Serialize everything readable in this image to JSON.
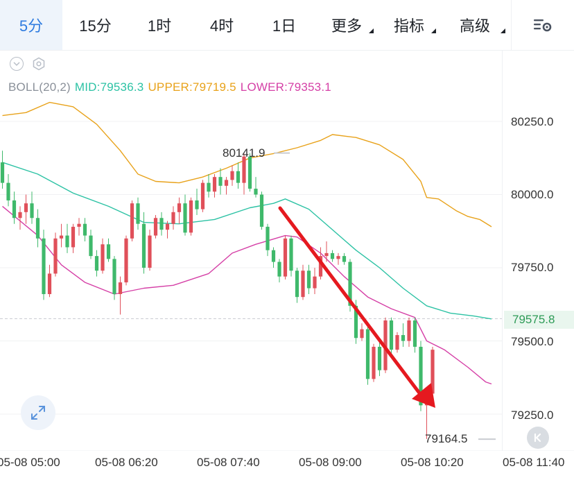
{
  "toolbar": {
    "tabs": [
      {
        "label": "5分",
        "active": true
      },
      {
        "label": "15分",
        "active": false
      },
      {
        "label": "1时",
        "active": false
      },
      {
        "label": "4时",
        "active": false
      },
      {
        "label": "1日",
        "active": false
      },
      {
        "label": "更多",
        "active": false,
        "dropdown": true
      },
      {
        "label": "指标",
        "active": false,
        "dropdown": true
      },
      {
        "label": "高级",
        "active": false,
        "dropdown": true
      }
    ],
    "settings_icon": "chart-settings-icon"
  },
  "indicator": {
    "name": "BOLL(20,2)",
    "mid": "MID:79536.3",
    "upper": "UPPER:79719.5",
    "lower": "LOWER:79353.1",
    "colors": {
      "name": "#8a9099",
      "mid": "#2cc2a4",
      "upper": "#e8a21a",
      "lower": "#d53fa6"
    }
  },
  "price_axis": {
    "labels": [
      "80250.0",
      "80000.0",
      "79750.0",
      "79500.0",
      "79250.0"
    ],
    "current_price": "79575.8"
  },
  "time_axis": {
    "labels": [
      "05-08 05:00",
      "05-08 06:20",
      "05-08 07:40",
      "05-08 09:00",
      "05-08 10:20",
      "05-08 11:40"
    ]
  },
  "annotations": {
    "high": "80141.9",
    "low": "79164.5"
  },
  "colors": {
    "up": "#e0505a",
    "down": "#3fb96b",
    "arrow": "#e5191f",
    "accent": "#2f7ce0"
  },
  "chart_data": {
    "type": "candlestick",
    "ylim": [
      79130,
      80320
    ],
    "x": [
      "05-08 05:00",
      "05-08 06:20",
      "05-08 07:40",
      "05-08 09:00",
      "05-08 10:20",
      "05-08 11:40"
    ],
    "candles": [
      [
        80110,
        80150,
        80020,
        80040
      ],
      [
        80040,
        80070,
        79960,
        79980
      ],
      [
        79980,
        80010,
        79900,
        79920
      ],
      [
        79920,
        79960,
        79880,
        79940
      ],
      [
        79940,
        80000,
        79900,
        79970
      ],
      [
        79970,
        80010,
        79900,
        79920
      ],
      [
        79920,
        79950,
        79820,
        79850
      ],
      [
        79850,
        79880,
        79640,
        79660
      ],
      [
        79660,
        79760,
        79650,
        79730
      ],
      [
        79730,
        79870,
        79720,
        79850
      ],
      [
        79850,
        79900,
        79820,
        79860
      ],
      [
        79860,
        79900,
        79800,
        79820
      ],
      [
        79820,
        79900,
        79800,
        79890
      ],
      [
        79890,
        79920,
        79860,
        79900
      ],
      [
        79900,
        79920,
        79840,
        79860
      ],
      [
        79860,
        79880,
        79780,
        79790
      ],
      [
        79790,
        79810,
        79720,
        79740
      ],
      [
        79740,
        79850,
        79730,
        79830
      ],
      [
        79830,
        79850,
        79770,
        79780
      ],
      [
        79780,
        79790,
        79640,
        79660
      ],
      [
        79660,
        79720,
        79590,
        79700
      ],
      [
        79700,
        79860,
        79690,
        79850
      ],
      [
        79850,
        79980,
        79840,
        79970
      ],
      [
        79970,
        79990,
        79880,
        79900
      ],
      [
        79900,
        79940,
        79730,
        79750
      ],
      [
        79750,
        79880,
        79740,
        79860
      ],
      [
        79860,
        79930,
        79850,
        79920
      ],
      [
        79920,
        79940,
        79860,
        79880
      ],
      [
        79880,
        79910,
        79850,
        79900
      ],
      [
        79900,
        79960,
        79880,
        79940
      ],
      [
        79940,
        79990,
        79900,
        79970
      ],
      [
        79970,
        80000,
        79860,
        79870
      ],
      [
        79870,
        79990,
        79860,
        79980
      ],
      [
        79980,
        80020,
        79930,
        79950
      ],
      [
        79950,
        80050,
        79940,
        80040
      ],
      [
        80040,
        80070,
        79990,
        80010
      ],
      [
        80010,
        80070,
        79990,
        80060
      ],
      [
        80060,
        80090,
        80000,
        80030
      ],
      [
        80030,
        80060,
        80000,
        80050
      ],
      [
        80050,
        80100,
        80030,
        80080
      ],
      [
        80080,
        80110,
        80020,
        80040
      ],
      [
        80040,
        80140,
        80000,
        80130
      ],
      [
        80130,
        80142,
        80010,
        80020
      ],
      [
        80020,
        80060,
        79990,
        80000
      ],
      [
        80000,
        80010,
        79880,
        79890
      ],
      [
        79890,
        79900,
        79790,
        79810
      ],
      [
        79810,
        79820,
        79750,
        79770
      ],
      [
        79770,
        79780,
        79700,
        79720
      ],
      [
        79720,
        79860,
        79710,
        79850
      ],
      [
        79850,
        79860,
        79720,
        79740
      ],
      [
        79740,
        79750,
        79630,
        79650
      ],
      [
        79650,
        79760,
        79640,
        79740
      ],
      [
        79740,
        79760,
        79660,
        79680
      ],
      [
        79680,
        79750,
        79660,
        79720
      ],
      [
        79720,
        79820,
        79710,
        79790
      ],
      [
        79790,
        79840,
        79770,
        79800
      ],
      [
        79800,
        79810,
        79770,
        79780
      ],
      [
        79780,
        79800,
        79760,
        79790
      ],
      [
        79790,
        79800,
        79760,
        79770
      ],
      [
        79770,
        79780,
        79600,
        79620
      ],
      [
        79620,
        79640,
        79490,
        79510
      ],
      [
        79510,
        79560,
        79500,
        79540
      ],
      [
        79540,
        79560,
        79350,
        79370
      ],
      [
        79370,
        79490,
        79360,
        79480
      ],
      [
        79480,
        79500,
        79380,
        79400
      ],
      [
        79400,
        79580,
        79390,
        79570
      ],
      [
        79570,
        79580,
        79450,
        79470
      ],
      [
        79470,
        79530,
        79460,
        79520
      ],
      [
        79520,
        79560,
        79480,
        79500
      ],
      [
        79500,
        79580,
        79480,
        79570
      ],
      [
        79570,
        79580,
        79460,
        79480
      ],
      [
        79480,
        79500,
        79260,
        79280
      ],
      [
        79280,
        79330,
        79165,
        79320
      ],
      [
        79320,
        79480,
        79300,
        79470
      ]
    ],
    "boll_upper": [
      [
        0,
        80270
      ],
      [
        4,
        80280
      ],
      [
        8,
        80315
      ],
      [
        12,
        80300
      ],
      [
        16,
        80240
      ],
      [
        20,
        80150
      ],
      [
        23,
        80070
      ],
      [
        26,
        80045
      ],
      [
        30,
        80040
      ],
      [
        34,
        80060
      ],
      [
        38,
        80090
      ],
      [
        42,
        80125
      ],
      [
        46,
        80140
      ],
      [
        50,
        80160
      ],
      [
        54,
        80185
      ],
      [
        56,
        80205
      ],
      [
        60,
        80195
      ],
      [
        64,
        80170
      ],
      [
        68,
        80120
      ],
      [
        71,
        80045
      ],
      [
        72,
        79990
      ],
      [
        74,
        79985
      ],
      [
        77,
        79945
      ],
      [
        79,
        79925
      ],
      [
        81,
        79915
      ],
      [
        83,
        79890
      ]
    ],
    "boll_mid": [
      [
        0,
        80110
      ],
      [
        6,
        80070
      ],
      [
        12,
        80005
      ],
      [
        18,
        79960
      ],
      [
        24,
        79905
      ],
      [
        30,
        79900
      ],
      [
        36,
        79915
      ],
      [
        42,
        79955
      ],
      [
        46,
        79970
      ],
      [
        48,
        79985
      ],
      [
        52,
        79950
      ],
      [
        56,
        79880
      ],
      [
        60,
        79810
      ],
      [
        64,
        79750
      ],
      [
        68,
        79680
      ],
      [
        72,
        79620
      ],
      [
        76,
        79595
      ],
      [
        80,
        79585
      ],
      [
        83,
        79575
      ]
    ],
    "boll_lower": [
      [
        0,
        79960
      ],
      [
        6,
        79860
      ],
      [
        10,
        79760
      ],
      [
        14,
        79700
      ],
      [
        19,
        79660
      ],
      [
        24,
        79680
      ],
      [
        29,
        79690
      ],
      [
        35,
        79730
      ],
      [
        39,
        79800
      ],
      [
        43,
        79830
      ],
      [
        48,
        79860
      ],
      [
        50,
        79855
      ],
      [
        54,
        79800
      ],
      [
        58,
        79720
      ],
      [
        62,
        79650
      ],
      [
        66,
        79610
      ],
      [
        70,
        79580
      ],
      [
        72,
        79500
      ],
      [
        75,
        79470
      ],
      [
        79,
        79410
      ],
      [
        82,
        79360
      ],
      [
        83,
        79353
      ]
    ],
    "annotations": {
      "high": 80141.9,
      "low": 79164.5,
      "last": 79575.8
    }
  }
}
